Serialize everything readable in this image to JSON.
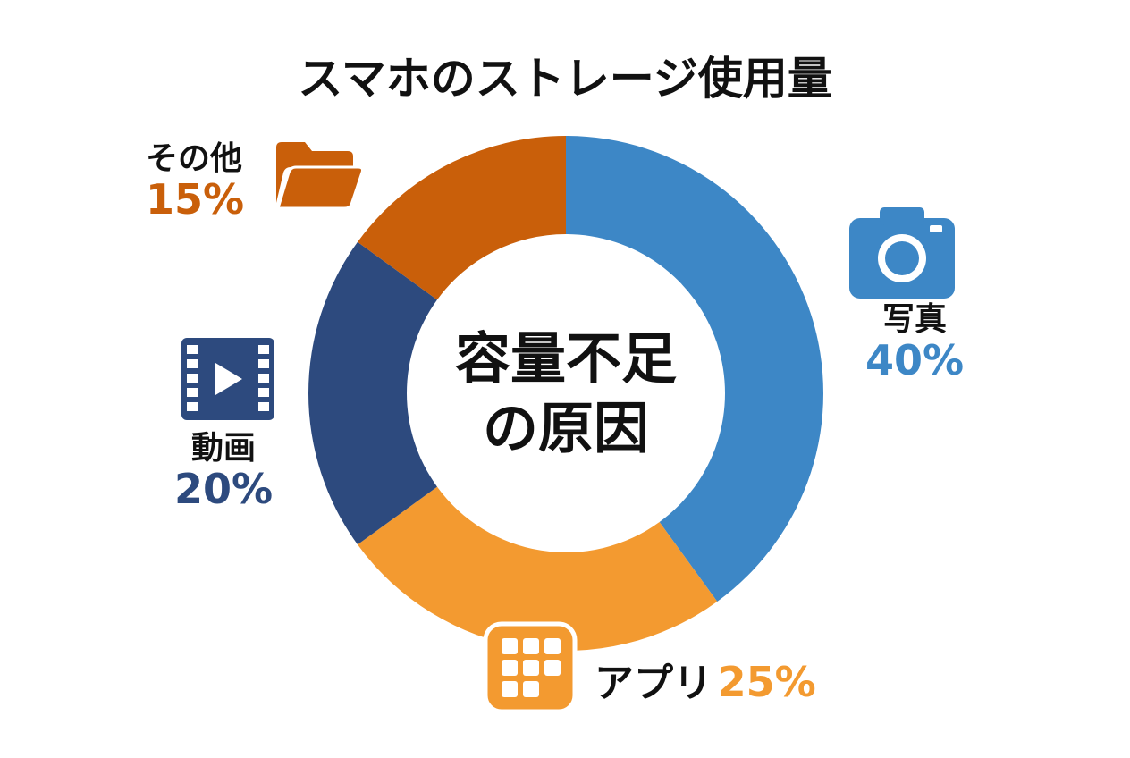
{
  "chart_data": {
    "type": "pie",
    "variant": "donut",
    "title": "スマホのストレージ使用量",
    "center_label": [
      "容量不足",
      "の原因"
    ],
    "slices": [
      {
        "label": "写真",
        "value": 40,
        "display": "40%",
        "color": "#3d87c6",
        "icon": "camera-icon"
      },
      {
        "label": "アプリ",
        "value": 25,
        "display": "25%",
        "color": "#f39a30",
        "icon": "app-grid-icon"
      },
      {
        "label": "動画",
        "value": 20,
        "display": "20%",
        "color": "#2d4a7e",
        "icon": "film-play-icon"
      },
      {
        "label": "その他",
        "value": 15,
        "display": "15%",
        "color": "#c95f0a",
        "icon": "folder-icon"
      }
    ],
    "start_angle": "top",
    "direction": "clockwise"
  }
}
